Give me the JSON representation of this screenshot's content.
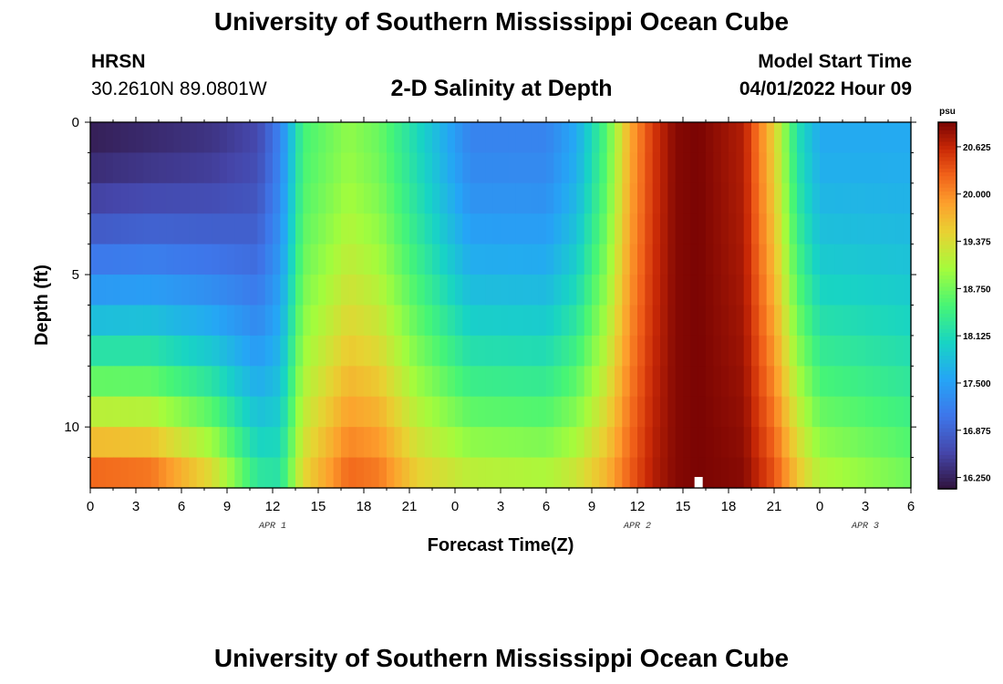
{
  "header": {
    "title": "University of Southern Mississippi Ocean Cube",
    "station_name": "HRSN",
    "station_coords": "30.2610N  89.0801W",
    "plot_title": "2-D Salinity at Depth",
    "model_start_label": "Model Start Time",
    "model_start_time": "04/01/2022 Hour 09"
  },
  "footer": {
    "title": "University of Southern Mississippi Ocean Cube"
  },
  "chart_data": {
    "type": "heatmap",
    "title": "2-D Salinity at Depth",
    "xlabel": "Forecast Time(Z)",
    "ylabel": "Depth (ft)",
    "x_tick_labels": [
      "0",
      "3",
      "6",
      "9",
      "12",
      "15",
      "18",
      "21",
      "0",
      "3",
      "6",
      "9",
      "12",
      "15",
      "18",
      "21",
      "0",
      "3",
      "6"
    ],
    "x_range_hours": [
      0,
      54
    ],
    "date_labels": [
      {
        "text": "APR 1",
        "hour": 12
      },
      {
        "text": "APR 2",
        "hour": 36
      },
      {
        "text": "APR 3",
        "hour": 51
      }
    ],
    "y_tick_labels": [
      "0",
      "5",
      "10"
    ],
    "y_tick_values": [
      0,
      5,
      10
    ],
    "y_range_ft": [
      0,
      12
    ],
    "depth_levels_ft": [
      0.5,
      1.5,
      2.5,
      3.5,
      4.5,
      5.5,
      6.5,
      7.5,
      8.5,
      9.5,
      10.5,
      11.5
    ],
    "colorbar": {
      "unit": "psu",
      "min": 16.1,
      "max": 20.95,
      "tick_labels": [
        "16.250",
        "16.875",
        "17.500",
        "18.125",
        "18.750",
        "19.375",
        "20.000",
        "20.625"
      ],
      "tick_values": [
        16.25,
        16.875,
        17.5,
        18.125,
        18.75,
        19.375,
        20.0,
        20.625
      ]
    },
    "salinity_keyframes": {
      "hours": [
        0,
        4,
        8,
        11,
        12.5,
        14,
        17,
        19,
        21.5,
        25,
        30,
        32,
        34,
        35.5,
        37,
        38.5,
        40,
        43,
        45,
        46.5,
        48,
        54
      ],
      "surface_psu": [
        16.2,
        16.3,
        16.4,
        16.6,
        17.2,
        18.5,
        18.9,
        18.7,
        18.1,
        17.2,
        17.2,
        17.6,
        18.6,
        19.8,
        20.5,
        20.9,
        20.95,
        20.7,
        19.5,
        18.2,
        17.6,
        17.6
      ],
      "bottom_psu": [
        20.5,
        20.4,
        19.6,
        18.4,
        18.3,
        19.5,
        20.3,
        20.2,
        19.6,
        19.3,
        19.2,
        19.4,
        19.8,
        20.3,
        20.7,
        20.9,
        20.95,
        20.9,
        20.4,
        19.7,
        19.2,
        18.8
      ]
    },
    "missing_cell": {
      "hour": 40,
      "depth_ft": 11.7
    }
  }
}
